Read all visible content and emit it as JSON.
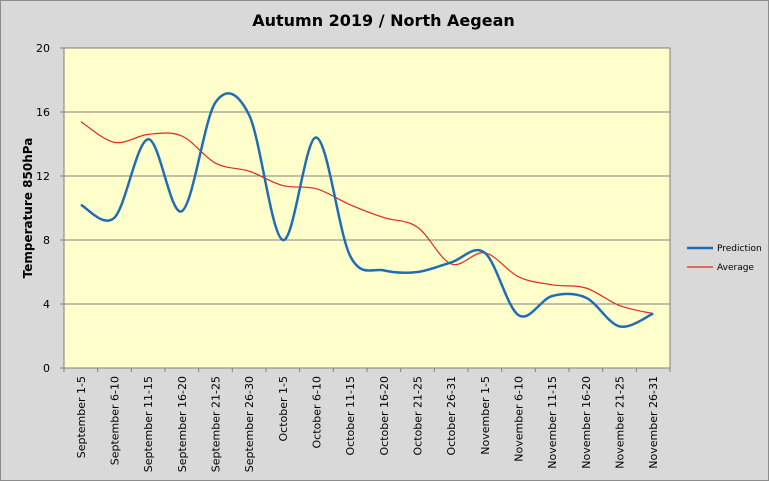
{
  "chart_data": {
    "type": "line",
    "title": "Autumn 2019 / North Aegean",
    "xlabel": "",
    "ylabel": "Temperature 850hPa",
    "ylim": [
      0,
      20
    ],
    "yticks": [
      0,
      4,
      8,
      12,
      16,
      20
    ],
    "grid": true,
    "legend_position": "right",
    "categories": [
      "September 1-5",
      "September 6-10",
      "September 11-15",
      "September 16-20",
      "September 21-25",
      "September 26-30",
      "October 1-5",
      "October 6-10",
      "October 11-15",
      "October 16-20",
      "October 21-25",
      "October 26-31",
      "November 1-5",
      "November 6-10",
      "November 11-15",
      "November 16-20",
      "November 21-25",
      "November 26-31"
    ],
    "series": [
      {
        "name": "Prediction",
        "color": "#1f6eb5",
        "values": [
          10.2,
          9.4,
          14.3,
          9.8,
          16.6,
          15.8,
          8.0,
          14.4,
          7.0,
          6.1,
          6.0,
          6.6,
          7.2,
          3.3,
          4.5,
          4.4,
          2.6,
          3.4
        ]
      },
      {
        "name": "Average",
        "color": "#e8261c",
        "values": [
          15.4,
          14.1,
          14.6,
          14.5,
          12.8,
          12.3,
          11.4,
          11.2,
          10.2,
          9.4,
          8.8,
          6.5,
          7.2,
          5.7,
          5.2,
          5.0,
          3.9,
          3.4
        ]
      }
    ]
  }
}
